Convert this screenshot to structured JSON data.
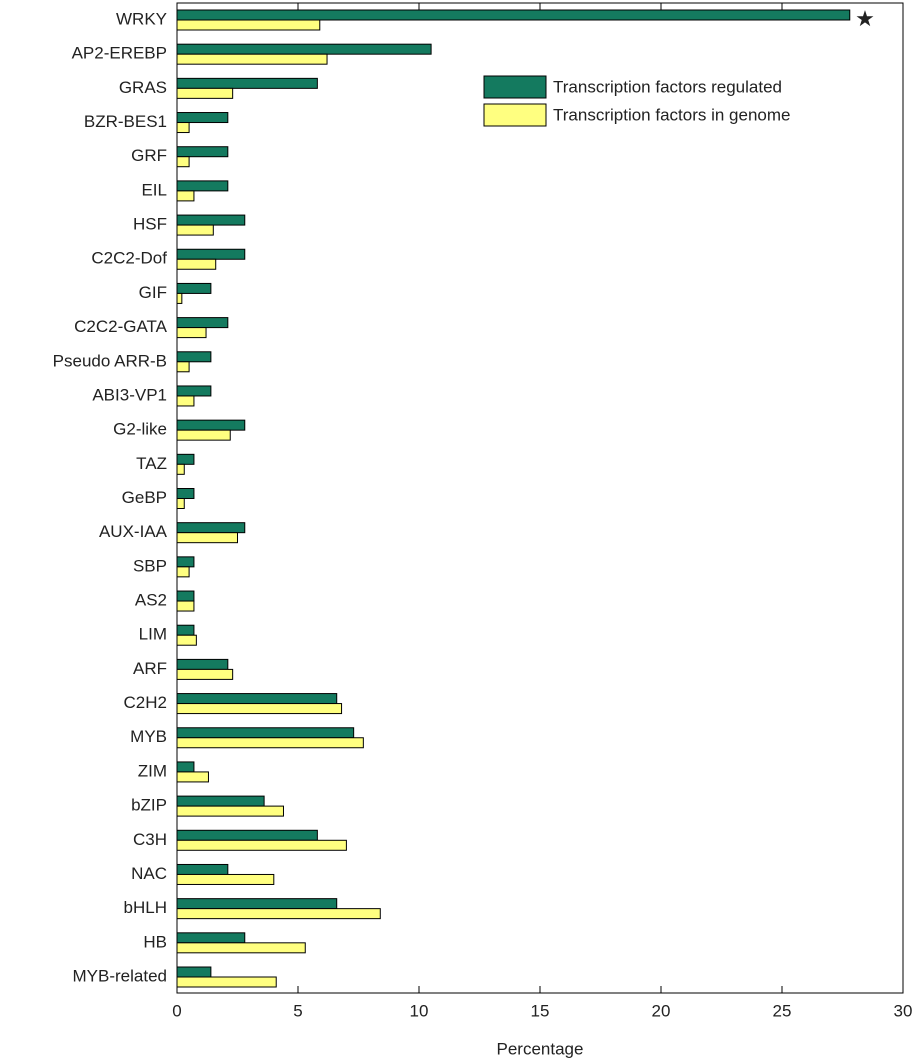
{
  "chart_data": {
    "type": "barh",
    "xlabel": "Percentage",
    "annotation": "★",
    "categories": [
      "WRKY",
      "AP2-EREBP",
      "GRAS",
      "BZR-BES1",
      "GRF",
      "EIL",
      "HSF",
      "C2C2-Dof",
      "GIF",
      "C2C2-GATA",
      "Pseudo ARR-B",
      "ABI3-VP1",
      "G2-like",
      "TAZ",
      "GeBP",
      "AUX-IAA",
      "SBP",
      "AS2",
      "LIM",
      "ARF",
      "C2H2",
      "MYB",
      "ZIM",
      "bZIP",
      "C3H",
      "NAC",
      "bHLH",
      "HB",
      "MYB-related"
    ],
    "series": [
      {
        "name": "Transcription factors regulated",
        "color": "#147a5f",
        "values": [
          27.8,
          10.5,
          5.8,
          2.1,
          2.1,
          2.1,
          2.8,
          2.8,
          1.4,
          2.1,
          1.4,
          1.4,
          2.8,
          0.7,
          0.7,
          2.8,
          0.7,
          0.7,
          0.7,
          2.1,
          6.6,
          7.3,
          0.7,
          3.6,
          5.8,
          2.1,
          6.6,
          2.8,
          1.4
        ]
      },
      {
        "name": "Transcription factors in genome",
        "color": "#ffff80",
        "values": [
          5.9,
          6.2,
          2.3,
          0.5,
          0.5,
          0.7,
          1.5,
          1.6,
          0.2,
          1.2,
          0.5,
          0.7,
          2.2,
          0.3,
          0.3,
          2.5,
          0.5,
          0.7,
          0.8,
          2.3,
          6.8,
          7.7,
          1.3,
          4.4,
          7.0,
          4.0,
          8.4,
          5.3,
          4.1
        ]
      }
    ],
    "xlim": [
      0,
      30
    ],
    "xticks": [
      0,
      5,
      10,
      15,
      20,
      25,
      30
    ],
    "legend": "upper right"
  }
}
